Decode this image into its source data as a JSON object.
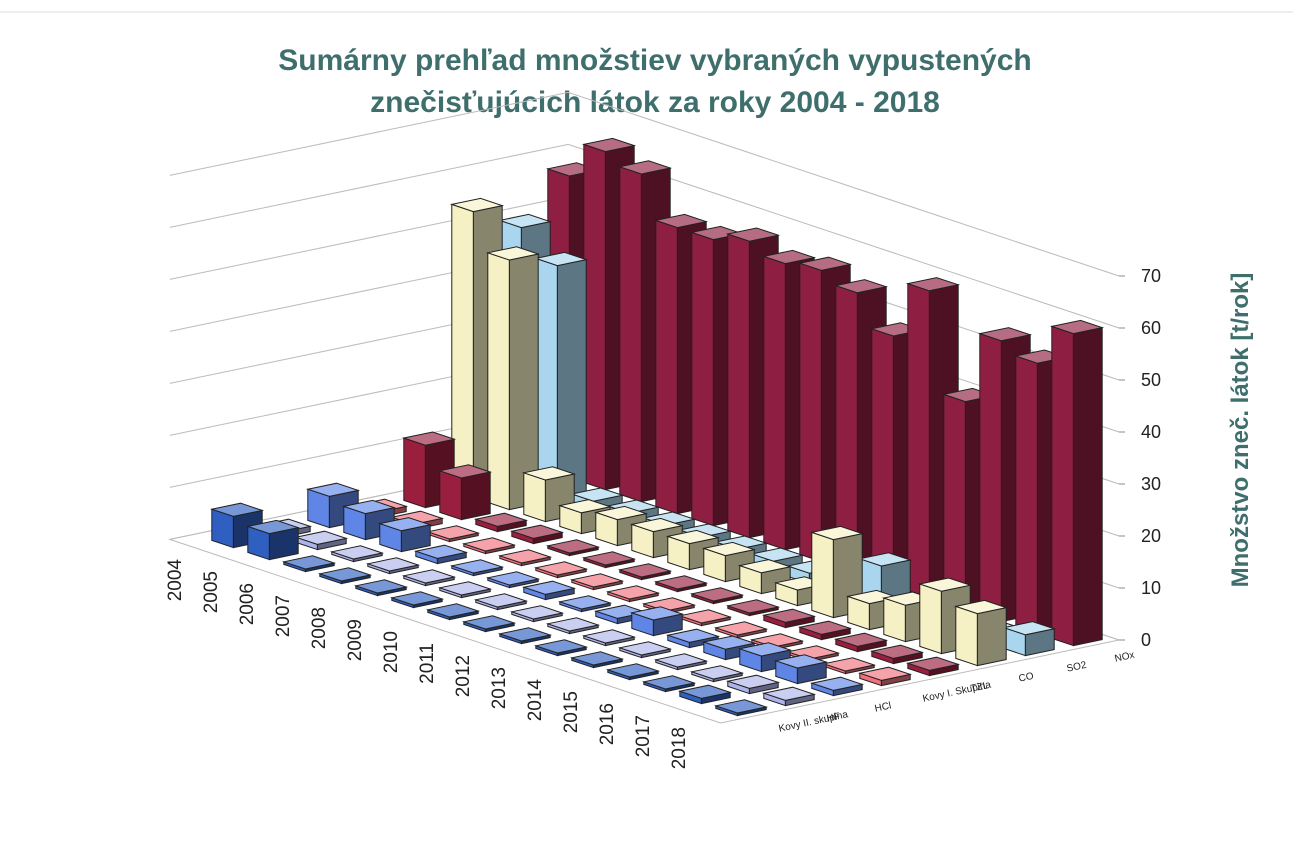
{
  "chart_data": {
    "type": "bar3d",
    "title": "Sumárny prehľad množstiev  vybraných vypustených",
    "subtitle": "znečisťujúcich látok za  roky 2004 - 2018",
    "zlabel": "Množstvo zneč. látok [t/rok]",
    "categories": [
      "2004",
      "2005",
      "2006",
      "2007",
      "2008",
      "2009",
      "2010",
      "2011",
      "2012",
      "2013",
      "2014",
      "2015",
      "2016",
      "2017",
      "2018"
    ],
    "zlim": [
      0,
      70
    ],
    "zticks": [
      0,
      10,
      20,
      30,
      40,
      50,
      60,
      70
    ],
    "series": [
      {
        "name": "Kovy II. skupina",
        "color": "#2f5fc0",
        "values": [
          6,
          5,
          0.5,
          0.5,
          0.5,
          0.5,
          0.5,
          0.5,
          0.5,
          0.5,
          0.5,
          0.5,
          0.5,
          1,
          0.5
        ]
      },
      {
        "name": "HF",
        "color": "#aeb4ea",
        "values": [
          1,
          1,
          0.5,
          0.5,
          0.5,
          0.5,
          0.5,
          0.5,
          0.5,
          0.5,
          0.5,
          0.5,
          0.5,
          1,
          1
        ]
      },
      {
        "name": "HCl",
        "color": "#5f86e6",
        "values": [
          6,
          5,
          4,
          1,
          0.5,
          0.5,
          1,
          0.5,
          1,
          3,
          1,
          2,
          3,
          3,
          1
        ]
      },
      {
        "name": "Kovy I. Skupina",
        "color": "#f0707e",
        "values": [
          1,
          1,
          0.5,
          0.5,
          0.5,
          0.5,
          0.5,
          0.5,
          0.5,
          0.5,
          0.5,
          0.5,
          0.5,
          0.5,
          1
        ]
      },
      {
        "name": "TZL",
        "color": "#9a1f3e",
        "values": [
          12,
          8,
          1,
          1,
          0.5,
          0.5,
          0.5,
          0.5,
          0.5,
          0.5,
          1,
          1,
          1,
          1,
          1
        ]
      },
      {
        "name": "CO",
        "color": "#f6f1c4",
        "values": [
          55,
          48,
          8,
          4,
          5,
          5,
          5,
          5,
          4,
          3,
          15,
          5,
          7,
          12,
          10
        ]
      },
      {
        "name": "SO2",
        "color": "#a9d6ee",
        "values": [
          50,
          45,
          2,
          2,
          2,
          2,
          2,
          2,
          2,
          2,
          8,
          2,
          2,
          2,
          4
        ]
      },
      {
        "name": "NOx",
        "color": "#8e1e42",
        "values": [
          58,
          65,
          63,
          55,
          55,
          57,
          55,
          56,
          54,
          48,
          59,
          40,
          54,
          52,
          60
        ]
      }
    ]
  }
}
